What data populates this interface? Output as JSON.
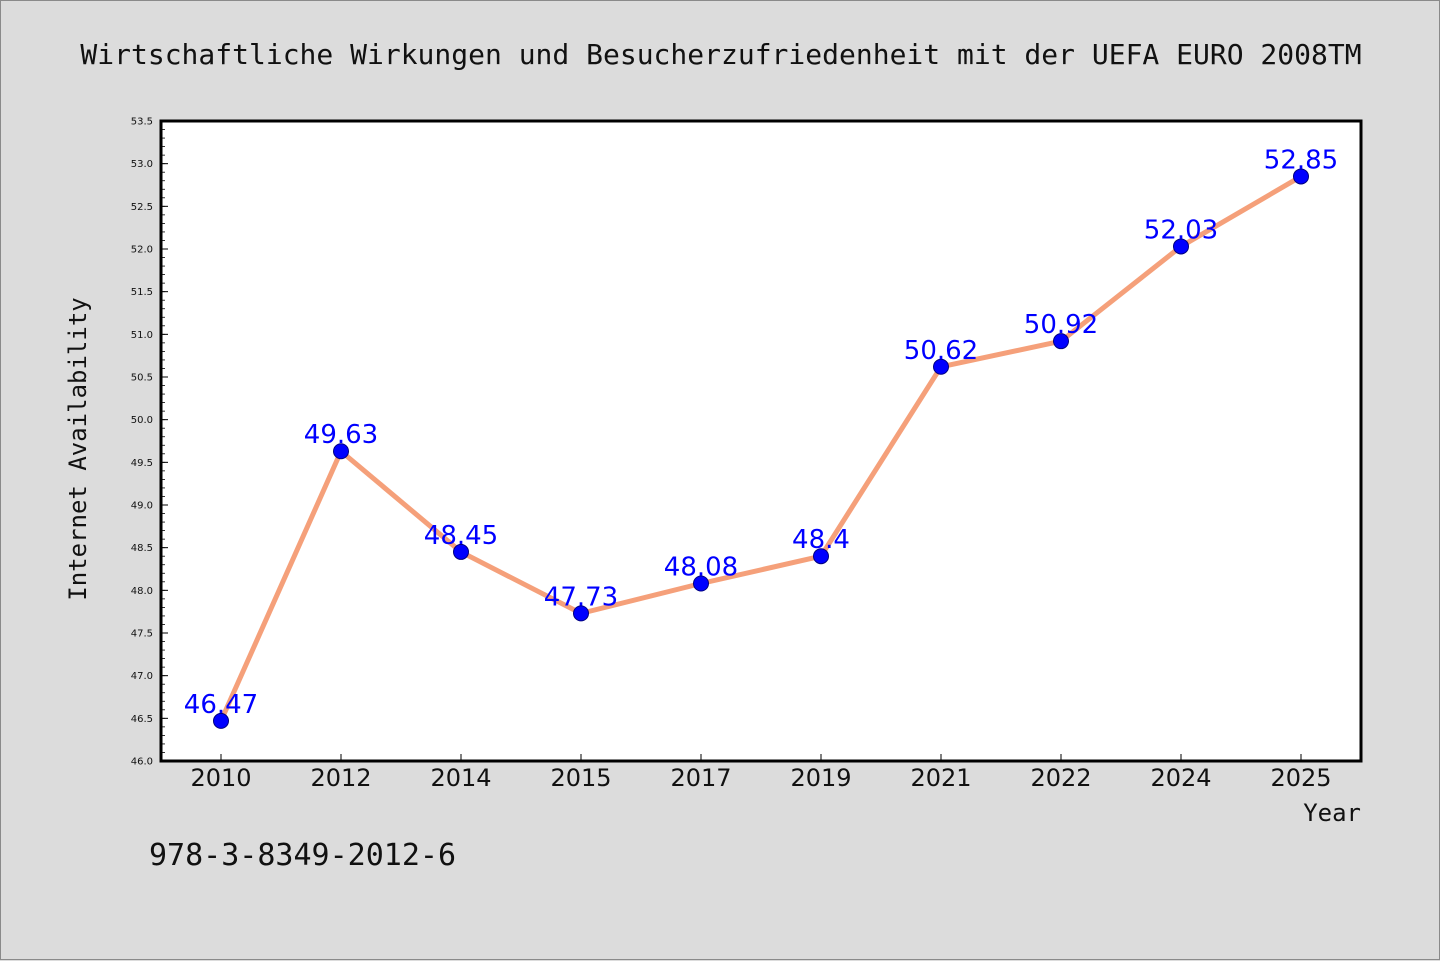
{
  "colors": {
    "line": "#f5a07a",
    "marker": "#0000ff",
    "marker_edge": "#000080",
    "label": "#0000ff",
    "plot_bg": "#ffffff",
    "page_bg": "#dcdcdc"
  },
  "footnote": "978-3-8349-2012-6",
  "chart_data": {
    "type": "line",
    "title": "Wirtschaftliche Wirkungen und Besucherzufriedenheit mit der UEFA EURO 2008TM",
    "xlabel": "Year",
    "ylabel": "Internet Availability",
    "categories": [
      "2010",
      "2012",
      "2014",
      "2015",
      "2017",
      "2019",
      "2021",
      "2022",
      "2024",
      "2025"
    ],
    "series": [
      {
        "values": [
          46.47,
          49.63,
          48.45,
          47.73,
          48.08,
          48.4,
          50.62,
          50.92,
          52.03,
          52.85
        ],
        "labels": [
          "46.47",
          "49.63",
          "48.45",
          "47.73",
          "48.08",
          "48.4",
          "50.62",
          "50.92",
          "52.03",
          "52.85"
        ]
      }
    ],
    "ylim": [
      46.0,
      53.5
    ],
    "yticks": [
      "46.0",
      "46.5",
      "47.0",
      "47.5",
      "48.0",
      "48.5",
      "49.0",
      "49.5",
      "50.0",
      "50.5",
      "51.0",
      "51.5",
      "52.0",
      "52.5",
      "53.0",
      "53.5"
    ],
    "grid": false,
    "legend": "none"
  }
}
